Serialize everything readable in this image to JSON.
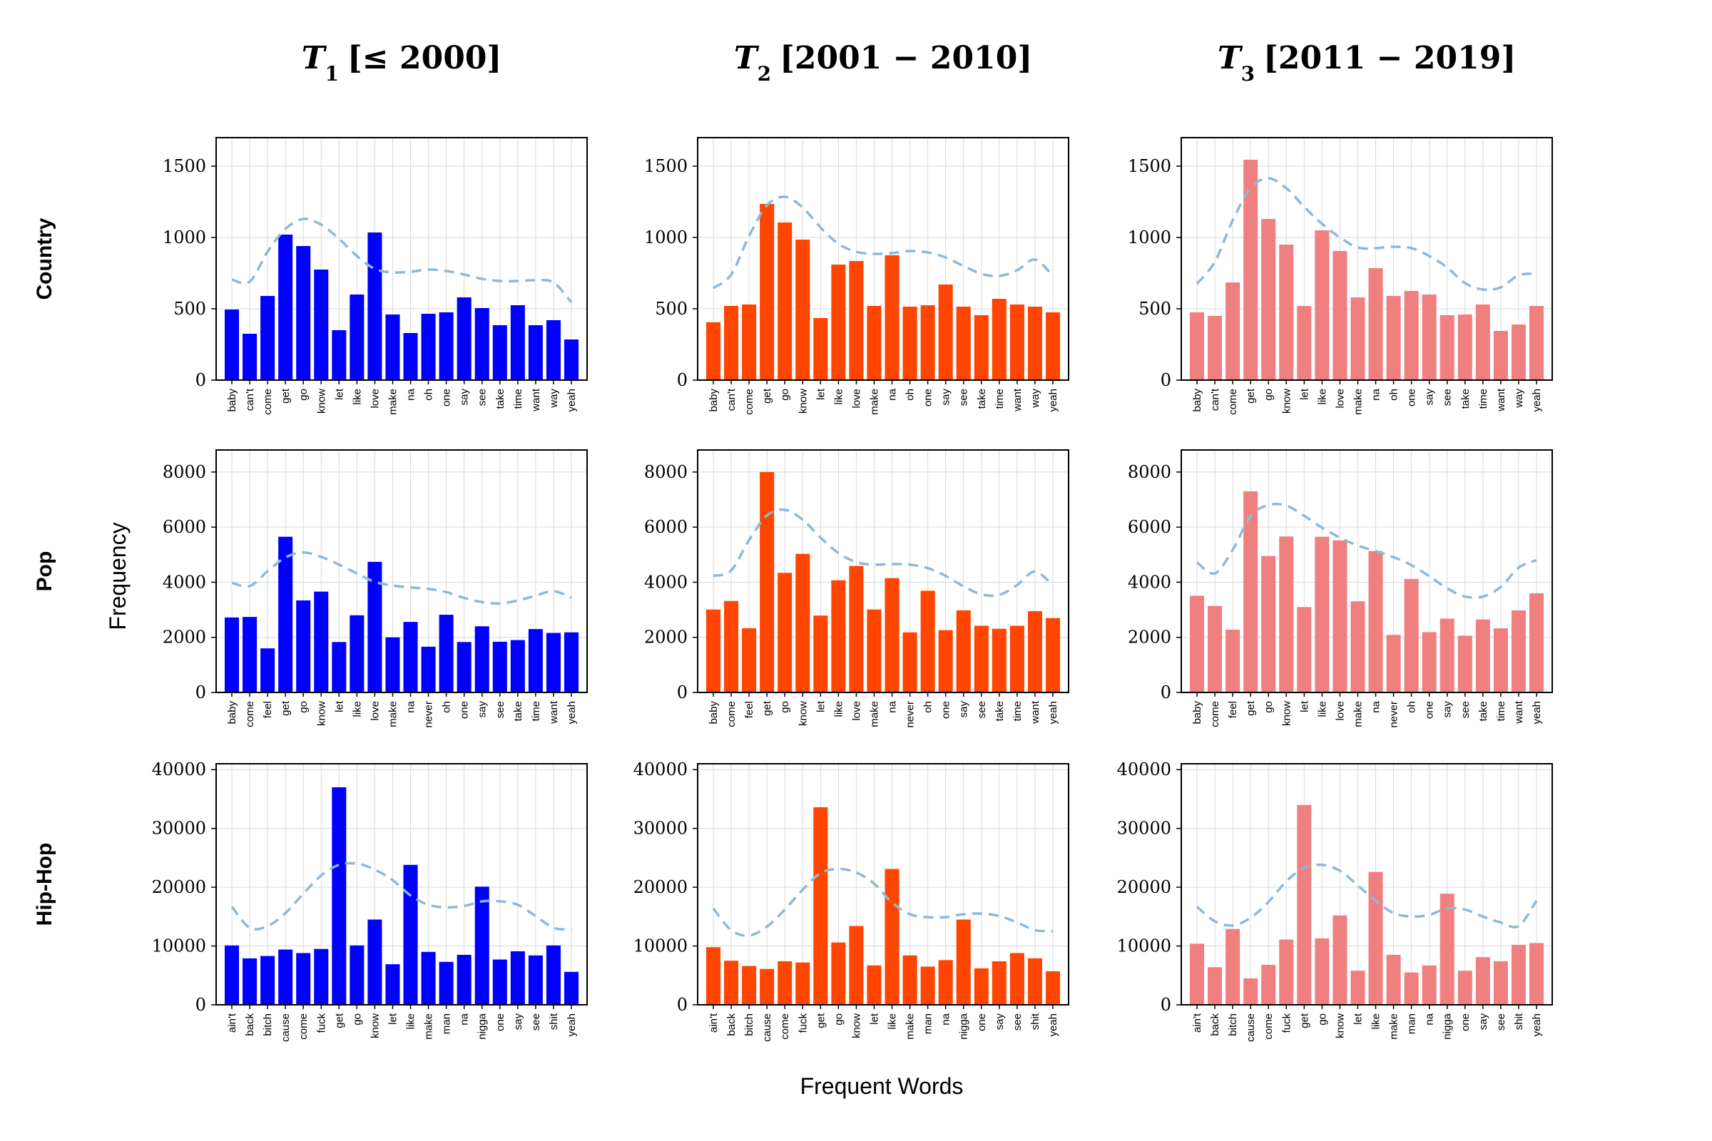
{
  "figure": {
    "ylabel": "Frequency",
    "xlabel": "Frequent Words",
    "columns": [
      {
        "sym": "T",
        "sub": "1",
        "range": "[≤ 2000]",
        "color": "#0000ff"
      },
      {
        "sym": "T",
        "sub": "2",
        "range": "[2001 − 2010]",
        "color": "#ff4500"
      },
      {
        "sym": "T",
        "sub": "3",
        "range": "[2011 − 2019]",
        "color": "#f08080"
      }
    ],
    "rows": [
      "Country",
      "Pop",
      "Hip-Hop"
    ]
  },
  "chart_data": [
    {
      "type": "bar",
      "genre": "Country",
      "period": "T1 [≤ 2000]",
      "ylim": [
        0,
        1700
      ],
      "yticks": [
        0,
        500,
        1000,
        1500
      ],
      "categories": [
        "baby",
        "can't",
        "come",
        "get",
        "go",
        "know",
        "let",
        "like",
        "love",
        "make",
        "na",
        "oh",
        "one",
        "say",
        "see",
        "take",
        "time",
        "want",
        "way",
        "yeah"
      ],
      "values": [
        495,
        325,
        590,
        1020,
        940,
        775,
        350,
        600,
        1035,
        460,
        330,
        465,
        475,
        580,
        505,
        385,
        525,
        385,
        420,
        285
      ],
      "trend": [
        705,
        690,
        900,
        1060,
        1130,
        1090,
        990,
        870,
        780,
        755,
        760,
        775,
        765,
        740,
        710,
        695,
        695,
        700,
        685,
        545
      ]
    },
    {
      "type": "bar",
      "genre": "Country",
      "period": "T2 [2001 − 2010]",
      "ylim": [
        0,
        1700
      ],
      "yticks": [
        0,
        500,
        1000,
        1500
      ],
      "categories": [
        "baby",
        "can't",
        "come",
        "get",
        "go",
        "know",
        "let",
        "like",
        "love",
        "make",
        "na",
        "oh",
        "one",
        "say",
        "see",
        "take",
        "time",
        "want",
        "way",
        "yeah"
      ],
      "values": [
        405,
        520,
        530,
        1235,
        1105,
        985,
        435,
        810,
        835,
        520,
        875,
        515,
        525,
        670,
        515,
        455,
        570,
        530,
        515,
        475
      ],
      "trend": [
        645,
        740,
        1010,
        1225,
        1285,
        1210,
        1070,
        955,
        900,
        885,
        890,
        905,
        895,
        860,
        800,
        745,
        730,
        770,
        845,
        730
      ]
    },
    {
      "type": "bar",
      "genre": "Country",
      "period": "T3 [2011 − 2019]",
      "ylim": [
        0,
        1700
      ],
      "yticks": [
        0,
        500,
        1000,
        1500
      ],
      "categories": [
        "baby",
        "can't",
        "come",
        "get",
        "go",
        "know",
        "let",
        "like",
        "love",
        "make",
        "na",
        "oh",
        "one",
        "say",
        "see",
        "take",
        "time",
        "want",
        "way",
        "yeah"
      ],
      "values": [
        475,
        450,
        685,
        1545,
        1130,
        950,
        520,
        1050,
        905,
        580,
        785,
        590,
        625,
        600,
        455,
        460,
        530,
        345,
        390,
        520
      ],
      "trend": [
        675,
        830,
        1120,
        1345,
        1415,
        1345,
        1215,
        1095,
        1000,
        930,
        925,
        935,
        925,
        870,
        790,
        680,
        635,
        650,
        735,
        745
      ]
    },
    {
      "type": "bar",
      "genre": "Pop",
      "period": "T1 [≤ 2000]",
      "ylim": [
        0,
        8800
      ],
      "yticks": [
        0,
        2000,
        4000,
        6000,
        8000
      ],
      "categories": [
        "baby",
        "come",
        "feel",
        "get",
        "go",
        "know",
        "let",
        "like",
        "love",
        "make",
        "na",
        "never",
        "oh",
        "one",
        "say",
        "see",
        "take",
        "time",
        "want",
        "yeah"
      ],
      "values": [
        2720,
        2740,
        1600,
        5650,
        3340,
        3660,
        1830,
        2800,
        4740,
        2000,
        2560,
        1660,
        2820,
        1830,
        2400,
        1840,
        1900,
        2300,
        2160,
        2180
      ],
      "trend": [
        3980,
        3860,
        4400,
        4900,
        5080,
        4920,
        4640,
        4320,
        4010,
        3880,
        3810,
        3760,
        3640,
        3430,
        3280,
        3230,
        3340,
        3510,
        3680,
        3430
      ]
    },
    {
      "type": "bar",
      "genre": "Pop",
      "period": "T2 [2001 − 2010]",
      "ylim": [
        0,
        8800
      ],
      "yticks": [
        0,
        2000,
        4000,
        6000,
        8000
      ],
      "categories": [
        "baby",
        "come",
        "feel",
        "get",
        "go",
        "know",
        "let",
        "like",
        "love",
        "make",
        "na",
        "never",
        "oh",
        "one",
        "say",
        "see",
        "take",
        "time",
        "want",
        "yeah"
      ],
      "values": [
        3010,
        3320,
        2330,
        8000,
        4340,
        5030,
        2790,
        4070,
        4590,
        3010,
        4150,
        2180,
        3690,
        2260,
        2980,
        2420,
        2310,
        2420,
        2950,
        2700
      ],
      "trend": [
        4230,
        4430,
        5530,
        6420,
        6630,
        6270,
        5620,
        5060,
        4730,
        4640,
        4660,
        4640,
        4510,
        4230,
        3850,
        3560,
        3540,
        3900,
        4390,
        3880
      ]
    },
    {
      "type": "bar",
      "genre": "Pop",
      "period": "T3 [2011 − 2019]",
      "ylim": [
        0,
        8800
      ],
      "yticks": [
        0,
        2000,
        4000,
        6000,
        8000
      ],
      "categories": [
        "baby",
        "come",
        "feel",
        "get",
        "go",
        "know",
        "let",
        "like",
        "love",
        "make",
        "na",
        "never",
        "oh",
        "one",
        "say",
        "see",
        "take",
        "time",
        "want",
        "yeah"
      ],
      "values": [
        3510,
        3140,
        2280,
        7300,
        4950,
        5660,
        3100,
        5650,
        5520,
        3310,
        5130,
        2090,
        4120,
        2190,
        2680,
        2060,
        2650,
        2330,
        2980,
        3600
      ],
      "trend": [
        4720,
        4320,
        5180,
        6400,
        6800,
        6780,
        6410,
        5980,
        5620,
        5330,
        5130,
        4910,
        4620,
        4220,
        3780,
        3480,
        3480,
        3830,
        4530,
        4800
      ]
    },
    {
      "type": "bar",
      "genre": "Hip-Hop",
      "period": "T1 [≤ 2000]",
      "ylim": [
        0,
        41000
      ],
      "yticks": [
        0,
        10000,
        20000,
        30000,
        40000
      ],
      "categories": [
        "ain't",
        "back",
        "bitch",
        "cause",
        "come",
        "fuck",
        "get",
        "go",
        "know",
        "let",
        "like",
        "make",
        "man",
        "na",
        "nigga",
        "one",
        "say",
        "see",
        "shit",
        "yeah"
      ],
      "values": [
        10100,
        7900,
        8300,
        9400,
        8800,
        9500,
        37000,
        10100,
        14500,
        6900,
        23800,
        9000,
        7300,
        8500,
        20100,
        7700,
        9100,
        8400,
        10100,
        5600
      ],
      "trend": [
        16700,
        13100,
        13400,
        15600,
        18900,
        22000,
        23800,
        24000,
        23000,
        21200,
        18600,
        17000,
        16600,
        16800,
        17600,
        17600,
        17000,
        15100,
        13100,
        12800
      ]
    },
    {
      "type": "bar",
      "genre": "Hip-Hop",
      "period": "T2 [2001 − 2010]",
      "ylim": [
        0,
        41000
      ],
      "yticks": [
        0,
        10000,
        20000,
        30000,
        40000
      ],
      "categories": [
        "ain't",
        "back",
        "bitch",
        "cause",
        "come",
        "fuck",
        "get",
        "go",
        "know",
        "let",
        "like",
        "make",
        "man",
        "na",
        "nigga",
        "one",
        "say",
        "see",
        "shit",
        "yeah"
      ],
      "values": [
        9800,
        7500,
        6600,
        6100,
        7400,
        7200,
        33600,
        10600,
        13400,
        6700,
        23100,
        8400,
        6500,
        7600,
        14500,
        6200,
        7400,
        8800,
        7900,
        5700
      ],
      "trend": [
        16400,
        12700,
        11800,
        13300,
        16200,
        19600,
        22400,
        23100,
        22500,
        20600,
        17400,
        15400,
        14900,
        14900,
        15400,
        15500,
        15100,
        14000,
        12700,
        12500
      ]
    },
    {
      "type": "bar",
      "genre": "Hip-Hop",
      "period": "T3 [2011 − 2019]",
      "ylim": [
        0,
        41000
      ],
      "yticks": [
        0,
        10000,
        20000,
        30000,
        40000
      ],
      "categories": [
        "ain't",
        "back",
        "bitch",
        "cause",
        "come",
        "fuck",
        "get",
        "go",
        "know",
        "let",
        "like",
        "make",
        "man",
        "na",
        "nigga",
        "one",
        "say",
        "see",
        "shit",
        "yeah"
      ],
      "values": [
        10400,
        6400,
        12900,
        4500,
        6800,
        11100,
        34000,
        11300,
        15200,
        5800,
        22600,
        8500,
        5500,
        6700,
        18900,
        5800,
        8100,
        7400,
        10200,
        10500
      ],
      "trend": [
        16700,
        14200,
        13500,
        14800,
        17500,
        21000,
        23300,
        23800,
        22800,
        20300,
        17700,
        15600,
        15000,
        15300,
        16400,
        16200,
        15000,
        14000,
        13400,
        17700
      ]
    }
  ]
}
